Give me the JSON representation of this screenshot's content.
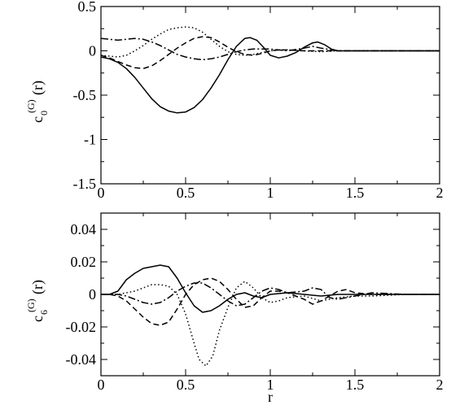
{
  "chart_data": [
    {
      "type": "line",
      "ylabel_main": "c",
      "ylabel_sub": "0",
      "ylabel_sup": "(G)",
      "ylabel_arg": "(r)",
      "xlim": [
        0,
        2
      ],
      "ylim": [
        -1.5,
        0.5
      ],
      "x_ticks": [
        0,
        0.5,
        1,
        1.5,
        2
      ],
      "x_tick_labels": [
        "0",
        "0.5",
        "1",
        "1.5",
        "2"
      ],
      "y_ticks": [
        -1.5,
        -1,
        -0.5,
        0,
        0.5
      ],
      "y_tick_labels": [
        "-1.5",
        "-1",
        "-0.5",
        "0",
        "0.5"
      ],
      "grid": false,
      "series": [
        {
          "style": "solid",
          "x": [
            0,
            0.05,
            0.1,
            0.15,
            0.2,
            0.25,
            0.3,
            0.35,
            0.4,
            0.45,
            0.5,
            0.55,
            0.6,
            0.65,
            0.7,
            0.75,
            0.8,
            0.85,
            0.88,
            0.92,
            0.96,
            1.0,
            1.05,
            1.1,
            1.15,
            1.2,
            1.25,
            1.28,
            1.32,
            1.36,
            1.4,
            1.5,
            1.6,
            1.8,
            2.0
          ],
          "y": [
            -0.07,
            -0.09,
            -0.13,
            -0.2,
            -0.3,
            -0.42,
            -0.54,
            -0.63,
            -0.68,
            -0.7,
            -0.69,
            -0.64,
            -0.55,
            -0.42,
            -0.27,
            -0.1,
            0.05,
            0.14,
            0.15,
            0.12,
            0.04,
            -0.05,
            -0.08,
            -0.06,
            -0.02,
            0.04,
            0.09,
            0.1,
            0.07,
            0.02,
            0.0,
            0.0,
            0.0,
            0.0,
            0.0
          ]
        },
        {
          "style": "dotted",
          "x": [
            0,
            0.05,
            0.1,
            0.15,
            0.2,
            0.25,
            0.3,
            0.35,
            0.4,
            0.45,
            0.5,
            0.55,
            0.6,
            0.65,
            0.7,
            0.75,
            0.8,
            0.85,
            0.9,
            0.95,
            1.0,
            1.05,
            1.1,
            1.2,
            1.3,
            1.4,
            1.5,
            1.6,
            1.8,
            2.0
          ],
          "y": [
            -0.05,
            -0.06,
            -0.07,
            -0.05,
            0.0,
            0.06,
            0.13,
            0.19,
            0.24,
            0.26,
            0.27,
            0.26,
            0.21,
            0.13,
            0.05,
            -0.01,
            -0.04,
            -0.05,
            -0.04,
            -0.02,
            0.0,
            0.01,
            0.01,
            0.0,
            -0.01,
            0.0,
            0.0,
            0.0,
            0.0,
            0.0
          ]
        },
        {
          "style": "dashed",
          "x": [
            0,
            0.05,
            0.1,
            0.15,
            0.2,
            0.25,
            0.3,
            0.35,
            0.4,
            0.45,
            0.5,
            0.55,
            0.6,
            0.65,
            0.7,
            0.75,
            0.8,
            0.85,
            0.9,
            0.95,
            1.0,
            1.05,
            1.1,
            1.2,
            1.3,
            1.4,
            1.5,
            1.6,
            1.8,
            2.0
          ],
          "y": [
            -0.05,
            -0.08,
            -0.12,
            -0.16,
            -0.19,
            -0.2,
            -0.17,
            -0.11,
            -0.04,
            0.03,
            0.09,
            0.14,
            0.16,
            0.15,
            0.1,
            0.04,
            -0.01,
            -0.04,
            -0.05,
            -0.03,
            0.0,
            0.01,
            0.01,
            0.0,
            0.0,
            0.0,
            0.0,
            0.0,
            0.0,
            0.0
          ]
        },
        {
          "style": "dashdot",
          "x": [
            0,
            0.05,
            0.1,
            0.15,
            0.2,
            0.25,
            0.3,
            0.35,
            0.4,
            0.45,
            0.5,
            0.55,
            0.6,
            0.65,
            0.7,
            0.75,
            0.8,
            0.85,
            0.9,
            0.95,
            1.0,
            1.05,
            1.1,
            1.2,
            1.25,
            1.3,
            1.4,
            1.5,
            1.6,
            1.8,
            2.0
          ],
          "y": [
            0.14,
            0.13,
            0.12,
            0.13,
            0.14,
            0.13,
            0.1,
            0.06,
            0.01,
            -0.04,
            -0.07,
            -0.09,
            -0.1,
            -0.09,
            -0.07,
            -0.04,
            -0.01,
            0.01,
            0.02,
            0.02,
            0.02,
            0.01,
            0.0,
            0.03,
            0.05,
            0.03,
            0.0,
            0.0,
            0.0,
            0.0,
            0.0
          ]
        }
      ]
    },
    {
      "type": "line",
      "xlabel": "r",
      "ylabel_main": "c",
      "ylabel_sub": "6",
      "ylabel_sup": "(G)",
      "ylabel_arg": "(r)",
      "xlim": [
        0,
        2
      ],
      "ylim": [
        -0.05,
        0.05
      ],
      "x_ticks": [
        0,
        0.5,
        1,
        1.5,
        2
      ],
      "x_tick_labels": [
        "0",
        "0.5",
        "1",
        "1.5",
        "2"
      ],
      "y_ticks": [
        -0.04,
        -0.02,
        0,
        0.02,
        0.04
      ],
      "y_tick_labels": [
        "-0.04",
        "-0.02",
        "0",
        "0.02",
        "0.04"
      ],
      "grid": false,
      "series": [
        {
          "style": "solid",
          "x": [
            0,
            0.05,
            0.1,
            0.15,
            0.2,
            0.25,
            0.3,
            0.35,
            0.4,
            0.45,
            0.5,
            0.55,
            0.6,
            0.65,
            0.7,
            0.75,
            0.8,
            0.85,
            0.9,
            0.95,
            1.0,
            1.1,
            1.2,
            1.3,
            1.4,
            1.5,
            1.6,
            1.8,
            2.0
          ],
          "y": [
            0.0,
            0.0,
            0.002,
            0.009,
            0.013,
            0.016,
            0.017,
            0.018,
            0.017,
            0.01,
            0.001,
            -0.007,
            -0.011,
            -0.01,
            -0.007,
            -0.003,
            0.0,
            0.001,
            -0.001,
            -0.002,
            0.0,
            0.001,
            0.0,
            -0.001,
            0.0,
            0.0,
            0.0,
            0.0,
            0.0
          ]
        },
        {
          "style": "dotted",
          "x": [
            0,
            0.05,
            0.1,
            0.15,
            0.2,
            0.25,
            0.3,
            0.35,
            0.4,
            0.45,
            0.5,
            0.55,
            0.58,
            0.62,
            0.66,
            0.7,
            0.75,
            0.8,
            0.85,
            0.9,
            0.95,
            1.0,
            1.05,
            1.1,
            1.2,
            1.3,
            1.35,
            1.4,
            1.5,
            1.6,
            1.8,
            2.0
          ],
          "y": [
            0.0,
            0.0,
            0.0,
            0.001,
            0.002,
            0.004,
            0.006,
            0.006,
            0.005,
            0.0,
            -0.012,
            -0.03,
            -0.04,
            -0.044,
            -0.038,
            -0.022,
            -0.008,
            0.004,
            0.008,
            0.004,
            -0.002,
            -0.005,
            -0.004,
            -0.002,
            -0.001,
            -0.004,
            -0.003,
            -0.002,
            -0.001,
            -0.001,
            0.0,
            0.0
          ]
        },
        {
          "style": "dashed",
          "x": [
            0,
            0.05,
            0.1,
            0.15,
            0.2,
            0.25,
            0.3,
            0.35,
            0.4,
            0.45,
            0.5,
            0.55,
            0.6,
            0.65,
            0.7,
            0.75,
            0.8,
            0.85,
            0.9,
            0.95,
            1.0,
            1.05,
            1.1,
            1.2,
            1.25,
            1.3,
            1.4,
            1.45,
            1.5,
            1.6,
            1.8,
            2.0
          ],
          "y": [
            0.0,
            0.0,
            -0.001,
            -0.004,
            -0.009,
            -0.014,
            -0.018,
            -0.019,
            -0.017,
            -0.009,
            0.0,
            0.006,
            0.009,
            0.01,
            0.008,
            0.003,
            -0.003,
            -0.008,
            -0.007,
            -0.002,
            0.002,
            0.002,
            0.001,
            -0.003,
            -0.006,
            -0.004,
            0.002,
            0.003,
            0.001,
            0.0,
            0.0,
            0.0
          ]
        },
        {
          "style": "dashdot",
          "x": [
            0,
            0.05,
            0.1,
            0.15,
            0.2,
            0.25,
            0.3,
            0.35,
            0.4,
            0.45,
            0.5,
            0.55,
            0.6,
            0.65,
            0.7,
            0.75,
            0.8,
            0.85,
            0.9,
            0.95,
            1.0,
            1.05,
            1.1,
            1.2,
            1.25,
            1.3,
            1.35,
            1.4,
            1.5,
            1.6,
            1.8,
            2.0
          ],
          "y": [
            0.0,
            0.0,
            0.0,
            -0.001,
            -0.003,
            -0.005,
            -0.006,
            -0.005,
            -0.002,
            0.002,
            0.005,
            0.007,
            0.007,
            0.004,
            0.0,
            -0.004,
            -0.007,
            -0.006,
            -0.002,
            0.002,
            0.004,
            0.003,
            0.001,
            0.002,
            0.004,
            0.003,
            -0.002,
            -0.003,
            -0.001,
            0.001,
            0.0,
            0.0
          ]
        }
      ]
    }
  ]
}
